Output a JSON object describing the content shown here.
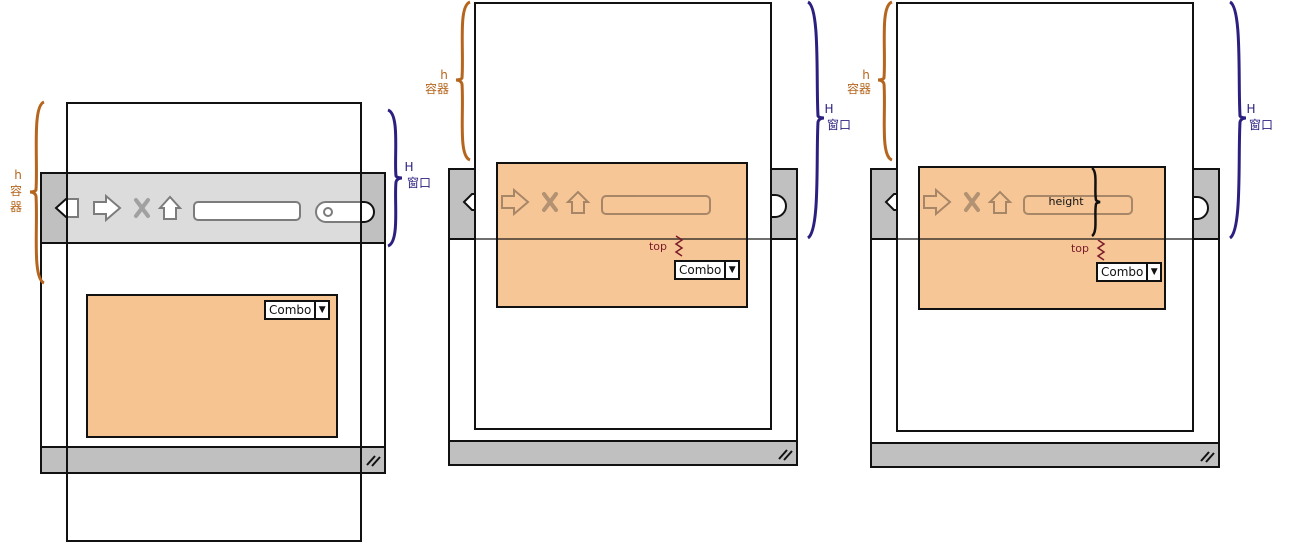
{
  "labels": {
    "h": "h",
    "container": "容器",
    "container_vertical": [
      "容",
      "器"
    ],
    "H": "H",
    "window": "窗口",
    "top": "top",
    "height": "height",
    "combo": "Combo"
  },
  "icons": [
    "back-arrow-icon",
    "forward-arrow-icon",
    "close-x-icon",
    "home-icon",
    "address-bar",
    "search-icon"
  ],
  "colors": {
    "content_fill": "#f6c491",
    "toolbar_gray": "#c0c0c0",
    "h_brace": "#b5651d",
    "H_brace": "#2b2080",
    "top_squiggle": "#7a1b2a"
  }
}
